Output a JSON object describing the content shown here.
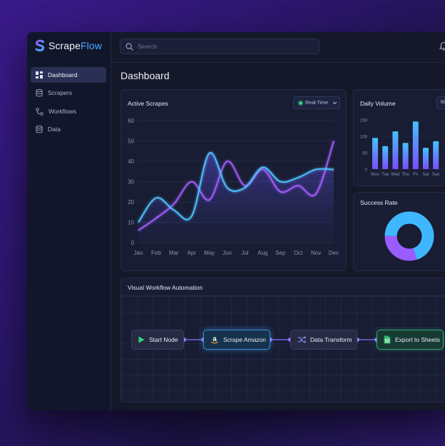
{
  "app": {
    "logo_part1": "Scrape",
    "logo_part2": "Flow",
    "accent_color": "#4aa8ff"
  },
  "sidebar": {
    "items": [
      {
        "label": "Dashboard",
        "icon": "grid-icon",
        "active": true
      },
      {
        "label": "Scrapers",
        "icon": "database-icon",
        "active": false
      },
      {
        "label": "Workflows",
        "icon": "workflow-icon",
        "active": false
      },
      {
        "label": "Data",
        "icon": "database-icon",
        "active": false
      }
    ]
  },
  "header": {
    "search_placeholder": "Search",
    "notification_icon": "bell-icon"
  },
  "page": {
    "title": "Dashboard"
  },
  "active_scrapes": {
    "title": "Active Scrapes",
    "filter_label": "Real-Time",
    "status_color": "#34d27a"
  },
  "daily_volume": {
    "title": "Daily Volume",
    "select_value": "M"
  },
  "success_rate": {
    "title": "Success Rate"
  },
  "workflow": {
    "title": "Visual Workflow Automation",
    "nodes": [
      {
        "label": "Start Node",
        "icon": "play-icon"
      },
      {
        "label": "Scrape Amazon",
        "icon": "amazon-icon"
      },
      {
        "label": "Data Transform",
        "icon": "shuffle-icon"
      },
      {
        "label": "Export to Sheets",
        "icon": "sheets-icon"
      }
    ]
  },
  "chart_data": [
    {
      "type": "line",
      "title": "Active Scrapes",
      "x": [
        "Jan",
        "Feb",
        "Mar",
        "Apr",
        "May",
        "Jun",
        "Jul",
        "Aug",
        "Sep",
        "Oct",
        "Nov",
        "Dec"
      ],
      "yticks": [
        0,
        10,
        20,
        30,
        40,
        50,
        60
      ],
      "ylim": [
        0,
        60
      ],
      "series": [
        {
          "color": "#4fc3ff",
          "values": [
            10,
            22,
            16,
            13,
            44,
            27,
            27,
            37,
            30,
            32,
            36,
            36
          ]
        },
        {
          "color": "#a45cff",
          "values": [
            6,
            12,
            19,
            30,
            21,
            40,
            28,
            36,
            25,
            28,
            24,
            50
          ]
        }
      ],
      "grid": true,
      "legend": "none"
    },
    {
      "type": "bar",
      "title": "Daily Volume",
      "categories": [
        "Mon",
        "Tue",
        "Wed",
        "Thu",
        "Fri",
        "Sat",
        "Sun"
      ],
      "values": [
        95,
        70,
        115,
        80,
        145,
        65,
        85
      ],
      "yticks": [
        0,
        50,
        100,
        150
      ],
      "ylim": [
        0,
        150
      ],
      "grid": true
    },
    {
      "type": "pie",
      "title": "Success Rate",
      "slices": [
        {
          "value": 70,
          "color": "#3fb7ff"
        },
        {
          "value": 30,
          "color": "#9a5cff"
        }
      ]
    }
  ]
}
